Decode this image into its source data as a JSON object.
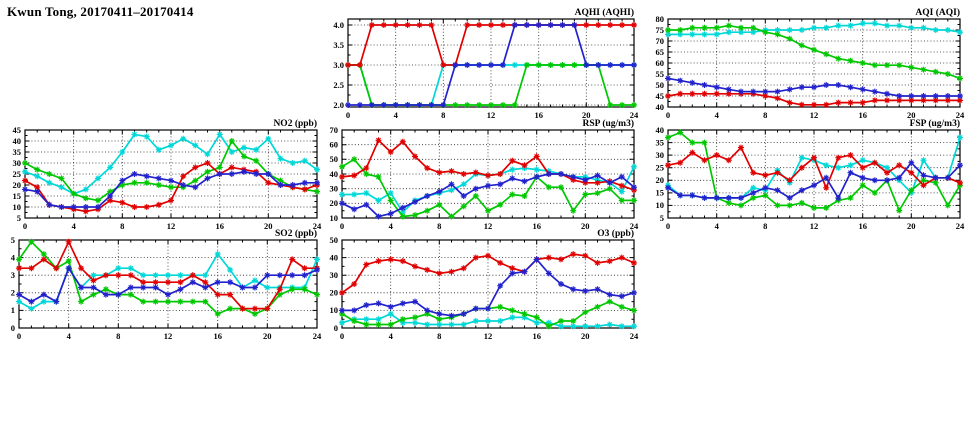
{
  "page_title": "Kwun Tong, 20170411–20170414",
  "station": "Kwun Tong",
  "date_range": "20170411–20170414",
  "series_colors": {
    "red": "#e10000",
    "green": "#00c800",
    "blue": "#2222cc",
    "cyan": "#00d8d8"
  },
  "x_hours": [
    0,
    1,
    2,
    3,
    4,
    5,
    6,
    7,
    8,
    9,
    10,
    11,
    12,
    13,
    14,
    15,
    16,
    17,
    18,
    19,
    20,
    21,
    22,
    23,
    24
  ],
  "chart_data": [
    {
      "id": "aqhi",
      "type": "line",
      "title": "AQHI (AQHI)",
      "xlim": [
        0,
        24
      ],
      "xticks": [
        0,
        4,
        8,
        12,
        16,
        20,
        24
      ],
      "ylim": [
        1.95,
        4.15
      ],
      "yticks": [
        2,
        2.5,
        3,
        3.5,
        4
      ],
      "ytick_labels": [
        "2.0",
        "2.5",
        "3.0",
        "3.5",
        "4.0"
      ],
      "grid": true,
      "legend": "none",
      "series": [
        {
          "name": "cyan",
          "color": "cyan",
          "values": [
            3,
            3,
            2,
            2,
            2,
            2,
            2,
            2,
            3,
            3,
            3,
            3,
            3,
            3,
            3,
            3,
            3,
            3,
            3,
            3,
            3,
            3,
            3,
            3,
            3
          ]
        },
        {
          "name": "green",
          "color": "green",
          "values": [
            3,
            3,
            2,
            2,
            2,
            2,
            2,
            2,
            2,
            2,
            2,
            2,
            2,
            2,
            2,
            3,
            3,
            3,
            3,
            3,
            3,
            3,
            2,
            2,
            2
          ]
        },
        {
          "name": "red",
          "color": "red",
          "values": [
            3,
            3,
            4,
            4,
            4,
            4,
            4,
            4,
            3,
            3,
            4,
            4,
            4,
            4,
            4,
            4,
            4,
            4,
            4,
            4,
            4,
            4,
            4,
            4,
            4
          ]
        },
        {
          "name": "blue",
          "color": "blue",
          "values": [
            2,
            2,
            2,
            2,
            2,
            2,
            2,
            2,
            2,
            3,
            3,
            3,
            3,
            3,
            4,
            4,
            4,
            4,
            4,
            4,
            3,
            3,
            3,
            3,
            3
          ]
        }
      ]
    },
    {
      "id": "aqi",
      "type": "line",
      "title": "AQI (AQI)",
      "xlim": [
        0,
        24
      ],
      "xticks": [
        0,
        4,
        8,
        12,
        16,
        20,
        24
      ],
      "ylim": [
        40,
        80
      ],
      "yticks": [
        40,
        45,
        50,
        55,
        60,
        65,
        70,
        75,
        80
      ],
      "ytick_labels": [
        "40",
        "45",
        "50",
        "55",
        "60",
        "65",
        "70",
        "75",
        "80"
      ],
      "grid": true,
      "legend": "none",
      "series": [
        {
          "name": "cyan",
          "color": "cyan",
          "values": [
            73,
            73,
            73,
            73,
            73,
            74,
            74,
            74,
            75,
            75,
            75,
            75,
            76,
            76,
            77,
            77,
            78,
            78,
            77,
            77,
            76,
            76,
            75,
            75,
            74
          ]
        },
        {
          "name": "green",
          "color": "green",
          "values": [
            75,
            75,
            76,
            76,
            76,
            77,
            76,
            76,
            74,
            73,
            71,
            68,
            66,
            64,
            62,
            61,
            60,
            59,
            59,
            59,
            58,
            57,
            56,
            55,
            53
          ]
        },
        {
          "name": "red",
          "color": "red",
          "values": [
            45,
            46,
            46,
            46,
            46,
            46,
            46,
            46,
            45,
            44,
            42,
            41,
            41,
            41,
            42,
            42,
            42,
            43,
            43,
            43,
            43,
            43,
            43,
            43,
            43
          ]
        },
        {
          "name": "blue",
          "color": "blue",
          "values": [
            53,
            52,
            51,
            50,
            49,
            48,
            47,
            47,
            47,
            47,
            48,
            49,
            49,
            50,
            50,
            49,
            48,
            47,
            46,
            45,
            45,
            45,
            45,
            45,
            45
          ]
        }
      ]
    },
    {
      "id": "no2",
      "type": "line",
      "title": "NO2 (ppb)",
      "xlim": [
        0,
        24
      ],
      "xticks": [
        0,
        4,
        8,
        12,
        16,
        20,
        24
      ],
      "ylim": [
        5,
        45
      ],
      "yticks": [
        5,
        10,
        15,
        20,
        25,
        30,
        35,
        40,
        45
      ],
      "ytick_labels": [
        "5",
        "10",
        "15",
        "20",
        "25",
        "30",
        "35",
        "40",
        "45"
      ],
      "grid": true,
      "legend": "none",
      "series": [
        {
          "name": "cyan",
          "color": "cyan",
          "values": [
            26,
            24,
            21,
            19,
            16,
            18,
            23,
            28,
            35,
            43,
            42,
            36,
            38,
            41,
            38,
            34,
            43,
            35,
            37,
            36,
            41,
            32,
            30,
            31,
            27
          ]
        },
        {
          "name": "green",
          "color": "green",
          "values": [
            30,
            27,
            25,
            23,
            16,
            14,
            13,
            17,
            20,
            21,
            21,
            20,
            19,
            19,
            22,
            26,
            28,
            40,
            33,
            31,
            25,
            22,
            19,
            18,
            17
          ]
        },
        {
          "name": "red",
          "color": "red",
          "values": [
            22,
            19,
            11,
            10,
            9,
            8,
            9,
            13,
            12,
            10,
            10,
            11,
            13,
            24,
            28,
            30,
            25,
            28,
            27,
            26,
            21,
            20,
            19,
            18,
            20
          ]
        },
        {
          "name": "blue",
          "color": "blue",
          "values": [
            18,
            17,
            11,
            10,
            10,
            10,
            10,
            15,
            22,
            25,
            24,
            23,
            22,
            20,
            19,
            23,
            25,
            25,
            26,
            25,
            25,
            20,
            20,
            21,
            21
          ]
        }
      ]
    },
    {
      "id": "rsp",
      "type": "line",
      "title": "RSP (ug/m3)",
      "xlim": [
        0,
        24
      ],
      "xticks": [
        0,
        4,
        8,
        12,
        16,
        20,
        24
      ],
      "ylim": [
        10,
        70
      ],
      "yticks": [
        10,
        20,
        30,
        40,
        50,
        60,
        70
      ],
      "ytick_labels": [
        "10",
        "20",
        "30",
        "40",
        "50",
        "60",
        "70"
      ],
      "grid": true,
      "legend": "none",
      "series": [
        {
          "name": "cyan",
          "color": "cyan",
          "values": [
            26,
            26,
            27,
            22,
            27,
            14,
            22,
            25,
            27,
            29,
            33,
            40,
            39,
            40,
            43,
            44,
            43,
            42,
            40,
            38,
            38,
            36,
            34,
            28,
            45
          ]
        },
        {
          "name": "green",
          "color": "green",
          "values": [
            45,
            50,
            40,
            38,
            22,
            11,
            12,
            15,
            19,
            11,
            18,
            25,
            15,
            19,
            26,
            25,
            38,
            31,
            31,
            15,
            26,
            27,
            30,
            22,
            22
          ]
        },
        {
          "name": "red",
          "color": "red",
          "values": [
            38,
            39,
            44,
            63,
            55,
            62,
            52,
            44,
            41,
            42,
            40,
            41,
            39,
            40,
            49,
            46,
            52,
            40,
            40,
            36,
            34,
            34,
            35,
            32,
            29
          ]
        },
        {
          "name": "blue",
          "color": "blue",
          "values": [
            20,
            16,
            19,
            11,
            13,
            17,
            21,
            25,
            28,
            33,
            25,
            30,
            32,
            33,
            37,
            35,
            38,
            40,
            40,
            38,
            36,
            39,
            34,
            38,
            31
          ]
        }
      ]
    },
    {
      "id": "fsp",
      "type": "line",
      "title": "FSP (ug/m3)",
      "xlim": [
        0,
        24
      ],
      "xticks": [
        0,
        4,
        8,
        12,
        16,
        20,
        24
      ],
      "ylim": [
        5,
        40
      ],
      "yticks": [
        5,
        10,
        15,
        20,
        25,
        30,
        35,
        40
      ],
      "ytick_labels": [
        "5",
        "10",
        "15",
        "20",
        "25",
        "30",
        "35",
        "40"
      ],
      "grid": true,
      "legend": "none",
      "series": [
        {
          "name": "cyan",
          "color": "cyan",
          "values": [
            18,
            14,
            14,
            13,
            13,
            13,
            13,
            17,
            16,
            24,
            19,
            29,
            28,
            26,
            25,
            26,
            28,
            27,
            25,
            20,
            15,
            28,
            21,
            21,
            37
          ]
        },
        {
          "name": "green",
          "color": "green",
          "values": [
            37,
            39,
            35,
            35,
            13,
            11,
            10,
            13,
            14,
            10,
            10,
            11,
            9,
            9,
            12,
            13,
            18,
            15,
            20,
            8,
            16,
            20,
            19,
            10,
            18
          ]
        },
        {
          "name": "red",
          "color": "red",
          "values": [
            26,
            27,
            31,
            28,
            30,
            28,
            33,
            23,
            22,
            23,
            20,
            25,
            29,
            17,
            29,
            30,
            25,
            27,
            23,
            26,
            23,
            18,
            21,
            21,
            19
          ]
        },
        {
          "name": "blue",
          "color": "blue",
          "values": [
            17,
            14,
            14,
            13,
            13,
            13,
            13,
            15,
            17,
            16,
            13,
            16,
            18,
            21,
            13,
            23,
            21,
            20,
            20,
            21,
            27,
            22,
            21,
            21,
            26
          ]
        }
      ]
    },
    {
      "id": "so2",
      "type": "line",
      "title": "SO2 (ppb)",
      "xlim": [
        0,
        24
      ],
      "xticks": [
        0,
        4,
        8,
        12,
        16,
        20,
        24
      ],
      "ylim": [
        0,
        5
      ],
      "yticks": [
        0,
        1,
        2,
        3,
        4,
        5
      ],
      "ytick_labels": [
        "0",
        "1",
        "2",
        "3",
        "4",
        "5"
      ],
      "grid": true,
      "legend": "none",
      "series": [
        {
          "name": "cyan",
          "color": "cyan",
          "values": [
            1.5,
            1.1,
            1.5,
            1.5,
            3.4,
            2.3,
            3.0,
            3.0,
            3.4,
            3.4,
            3.0,
            3.0,
            3.0,
            3.0,
            3.0,
            3.0,
            4.2,
            3.3,
            2.3,
            2.7,
            2.3,
            2.3,
            2.3,
            2.3,
            3.9
          ]
        },
        {
          "name": "green",
          "color": "green",
          "values": [
            3.9,
            4.9,
            4.2,
            3.4,
            3.8,
            1.5,
            1.9,
            2.2,
            1.9,
            1.9,
            1.5,
            1.5,
            1.5,
            1.5,
            1.5,
            1.5,
            0.8,
            1.1,
            1.1,
            0.8,
            1.1,
            1.9,
            2.2,
            2.2,
            1.9
          ]
        },
        {
          "name": "red",
          "color": "red",
          "values": [
            3.4,
            3.4,
            3.9,
            3.4,
            4.9,
            3.4,
            2.7,
            3.0,
            3.0,
            3.0,
            2.6,
            2.6,
            2.6,
            2.6,
            3.0,
            2.6,
            1.9,
            1.9,
            1.1,
            1.1,
            1.1,
            2.2,
            3.9,
            3.4,
            3.4
          ]
        },
        {
          "name": "blue",
          "color": "blue",
          "values": [
            1.9,
            1.5,
            1.9,
            1.5,
            3.4,
            2.3,
            2.3,
            1.9,
            1.9,
            2.3,
            2.3,
            2.3,
            1.9,
            2.2,
            2.6,
            2.3,
            2.6,
            2.6,
            2.3,
            2.3,
            3.0,
            3.0,
            3.0,
            3.0,
            3.3
          ]
        }
      ]
    },
    {
      "id": "o3",
      "type": "line",
      "title": "O3 (ppb)",
      "xlim": [
        0,
        24
      ],
      "xticks": [
        0,
        4,
        8,
        12,
        16,
        20,
        24
      ],
      "ylim": [
        0,
        50
      ],
      "yticks": [
        0,
        10,
        20,
        30,
        40,
        50
      ],
      "ytick_labels": [
        "0",
        "10",
        "20",
        "30",
        "40",
        "50"
      ],
      "grid": true,
      "legend": "none",
      "series": [
        {
          "name": "cyan",
          "color": "cyan",
          "values": [
            3,
            5,
            5,
            5,
            8,
            3,
            3,
            2,
            2,
            2,
            2,
            4,
            4,
            4,
            6,
            6,
            3,
            3,
            1,
            1,
            1,
            1,
            2,
            1,
            1
          ]
        },
        {
          "name": "green",
          "color": "green",
          "values": [
            8,
            4,
            2,
            2,
            2,
            5,
            6,
            8,
            5,
            6,
            8,
            11,
            11,
            12,
            10,
            8,
            6,
            1,
            4,
            4,
            9,
            12,
            15,
            12,
            10
          ]
        },
        {
          "name": "red",
          "color": "red",
          "values": [
            20,
            25,
            36,
            38,
            39,
            38,
            35,
            33,
            31,
            32,
            34,
            40,
            41,
            37,
            34,
            32,
            39,
            40,
            39,
            42,
            41,
            37,
            38,
            40,
            37
          ]
        },
        {
          "name": "blue",
          "color": "blue",
          "values": [
            10,
            10,
            13,
            14,
            12,
            14,
            15,
            10,
            8,
            7,
            8,
            11,
            11,
            24,
            31,
            32,
            39,
            31,
            25,
            22,
            21,
            22,
            19,
            18,
            20
          ]
        }
      ]
    }
  ]
}
